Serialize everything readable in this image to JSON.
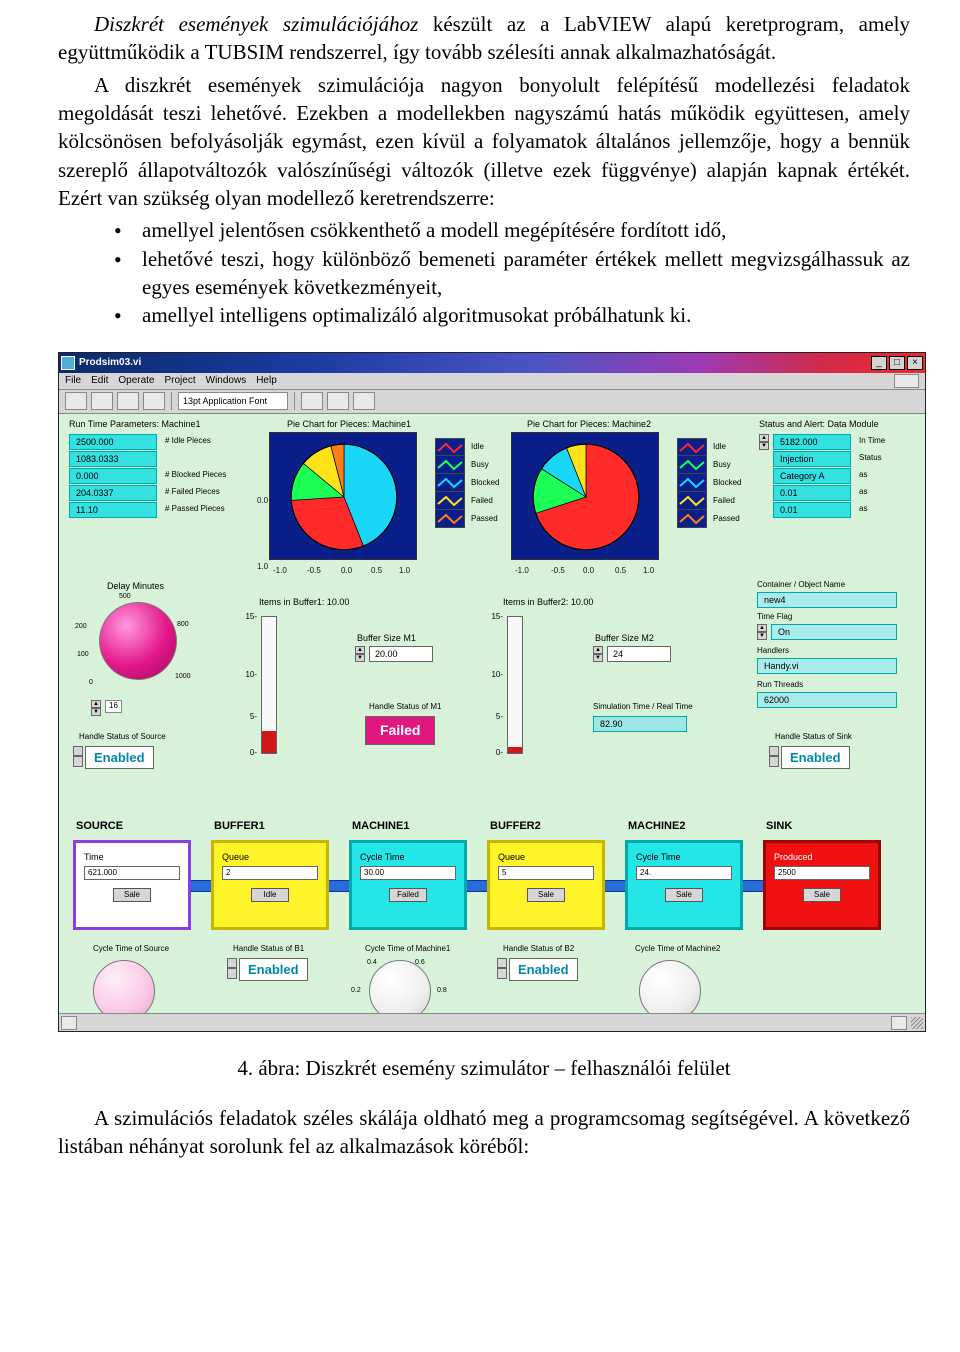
{
  "text": {
    "p1_lead": "Diszkrét események szimulációjához",
    "p1_rest": " készült az a LabVIEW alapú keretprogram, amely együttműködik a TUBSIM rendszerrel, így tovább szélesíti annak alkalmazhatóságát.",
    "p2": "A diszkrét események szimulációja nagyon bonyolult felépítésű modellezési feladatok megoldását teszi lehetővé. Ezekben a modellekben nagyszámú hatás működik együttesen, amely kölcsönösen befolyásolják egymást, ezen kívül a folyamatok általános jellemzője, hogy a bennük szereplő állapotváltozók valószínűségi változók (illetve ezek függvénye) alapján kapnak értékét. Ezért van szükség olyan modellező keretrendszerre:",
    "b1": "amellyel jelentősen csökkenthető a modell megépítésére fordított idő,",
    "b2": "lehetővé teszi, hogy különböző bemeneti paraméter értékek mellett megvizsgálhassuk az egyes események következményeit,",
    "b3": "amellyel intelligens optimalizáló algoritmusokat próbálhatunk ki.",
    "caption": "4. ábra: Diszkrét esemény szimulátor – felhasználói felület",
    "p3": "A szimulációs feladatok széles skálája oldható meg a programcsomag segítségével. A következő listában néhányat sorolunk fel az alkalmazások köréből:"
  },
  "window": {
    "title": "Prodsim03.vi",
    "menu": [
      "File",
      "Edit",
      "Operate",
      "Project",
      "Windows",
      "Help"
    ],
    "toolbar_combo": "13pt Application Font"
  },
  "left_params": {
    "title": "Run Time Parameters: Machine1",
    "rows": [
      {
        "v": "2500.000",
        "l": "# Idle Pieces"
      },
      {
        "v": "1083.0333",
        "l": ""
      },
      {
        "v": "0.000",
        "l": "# Blocked Pieces"
      },
      {
        "v": "204.0337",
        "l": "# Failed Pieces"
      },
      {
        "v": "11.10",
        "l": "# Passed Pieces"
      }
    ]
  },
  "pie1": {
    "title": "Pie Chart for Pieces: Machine1",
    "type": "pie",
    "slices": [
      {
        "v": 0.44,
        "c": "#1ad6f7"
      },
      {
        "v": 0.3,
        "c": "#ff2a2a"
      },
      {
        "v": 0.12,
        "c": "#1cff55"
      },
      {
        "v": 0.1,
        "c": "#ffe21a"
      },
      {
        "v": 0.04,
        "c": "#ff7e1a"
      }
    ],
    "ticks": [
      "-1.0",
      "-0.5",
      "0.0",
      "0.5",
      "1.0"
    ]
  },
  "pie2": {
    "title": "Pie Chart for Pieces: Machine2",
    "type": "pie",
    "slices": [
      {
        "v": 0.7,
        "c": "#ff2a2a"
      },
      {
        "v": 0.14,
        "c": "#1cff55"
      },
      {
        "v": 0.1,
        "c": "#1ad6f7"
      },
      {
        "v": 0.06,
        "c": "#ffe21a"
      }
    ],
    "ticks": [
      "-1.0",
      "-0.5",
      "0.0",
      "0.5",
      "1.0"
    ]
  },
  "pie_legend": [
    "Idle",
    "Busy",
    "Blocked",
    "Failed",
    "Passed"
  ],
  "right_status": {
    "title": "Status and Alert: Data Module",
    "rows": [
      {
        "f": "5182.000",
        "l": "In Time"
      },
      {
        "f": "Injection",
        "l": "Status"
      },
      {
        "f": "Category A",
        "l": "as"
      },
      {
        "f": "0.01",
        "l": "as"
      },
      {
        "f": "0.01",
        "l": "as"
      }
    ]
  },
  "delay_knob": {
    "label": "Delay Minutes",
    "min": "0",
    "max": "1000",
    "marks": [
      "0",
      "100",
      "200",
      "500",
      "800",
      "1000"
    ],
    "value": "16"
  },
  "tank1": {
    "label": "Items in Buffer1: 10.00",
    "min": "0",
    "max": "15",
    "fill": 0.16
  },
  "tank2": {
    "label": "Items in Buffer2: 10.00",
    "min": "0",
    "max": "15",
    "fill": 0.04
  },
  "m1": {
    "bsize_lbl": "Buffer Size M1",
    "bsize_val": "20.00",
    "status_lbl": "Handle Status of M1",
    "status": "Failed"
  },
  "m2": {
    "bsize_lbl": "Buffer Size M2",
    "bsize_val": "24",
    "status_lbl": "",
    "simtime_lbl": "Simulation Time / Real Time",
    "simtime": "82.90"
  },
  "right_cfg": {
    "container_lbl": "Container / Object Name",
    "container": "new4",
    "tf_lbl": "Time Flag",
    "tf": "On",
    "hn_lbl": "Handlers",
    "hn": "Handy.vi",
    "pt_lbl": "Run Threads",
    "pt": "62000"
  },
  "enabled_txt": "Enabled",
  "en_labels": {
    "src": "Handle Status of Source",
    "b1": "Handle Status of B1",
    "sink": "Handle Status of Sink"
  },
  "chain": [
    {
      "name": "SOURCE",
      "bg": "#ffffff",
      "bd": "#8c3de0",
      "lbl": "Time",
      "val": "621.000",
      "btn": "Sale"
    },
    {
      "name": "BUFFER1",
      "bg": "#fff42a",
      "bd": "#c9b400",
      "lbl": "Queue",
      "val": "2",
      "btn": "Idle"
    },
    {
      "name": "MACHINE1",
      "bg": "#25e6e6",
      "bd": "#0aa",
      "lbl": "Cycle Time",
      "val": "30.00",
      "btn": "Failed"
    },
    {
      "name": "BUFFER2",
      "bg": "#fff42a",
      "bd": "#c9b400",
      "lbl": "Queue",
      "val": "5",
      "btn": "Sale"
    },
    {
      "name": "MACHINE2",
      "bg": "#25e6e6",
      "bd": "#0aa",
      "lbl": "Cycle Time",
      "val": "24.",
      "btn": "Sale"
    },
    {
      "name": "SINK",
      "bg": "#ef1111",
      "bd": "#9a0606",
      "lbl": "Produced",
      "val": "2500",
      "btn": "Sale",
      "fg": "#fff"
    }
  ],
  "bottom": {
    "k1": "Cycle Time of Source",
    "k2": "Cycle Time of Machine1",
    "k3": "Cycle Time of Machine2",
    "e2": "Handle Status of B2"
  }
}
